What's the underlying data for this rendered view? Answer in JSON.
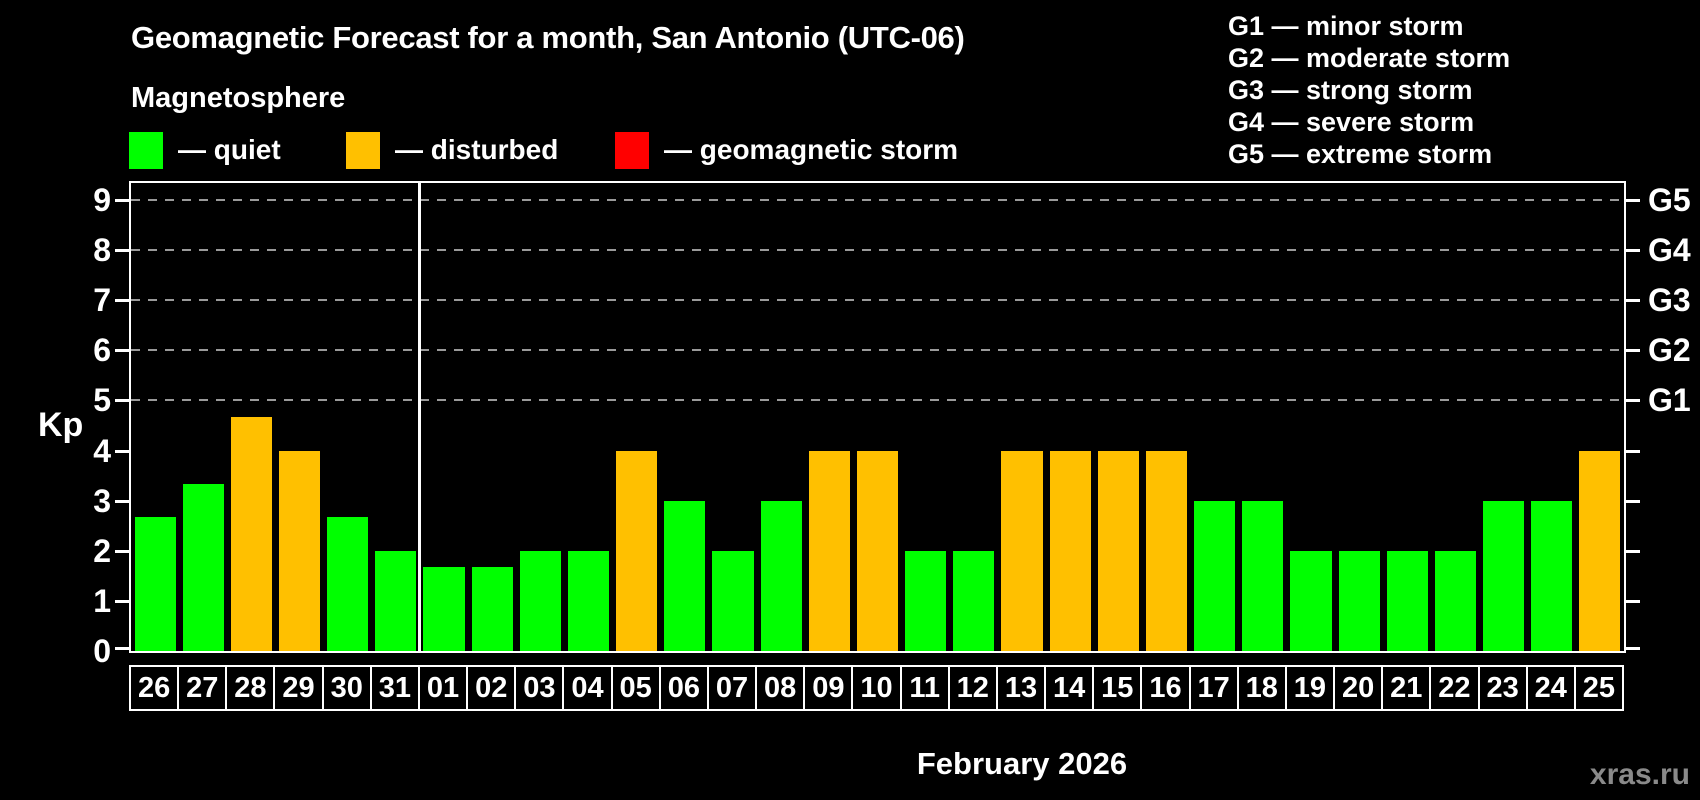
{
  "header": {
    "title": "Geomagnetic Forecast for a month, San Antonio (UTC-06)",
    "subtitle": "Magnetosphere"
  },
  "bar_legend": [
    {
      "key": "quiet",
      "label": "— quiet",
      "color": "#00ff00"
    },
    {
      "key": "disturbed",
      "label": "— disturbed",
      "color": "#ffc000"
    },
    {
      "key": "storm",
      "label": "— geomagnetic storm",
      "color": "#ff0000"
    }
  ],
  "g_legend": [
    "G1 — minor storm",
    "G2 — moderate storm",
    "G3 — strong storm",
    "G4 — severe storm",
    "G5 — extreme storm"
  ],
  "chart_data": {
    "type": "bar",
    "ylabel": "Kp",
    "ylim": [
      0,
      9.34
    ],
    "yticks": [
      0,
      1,
      2,
      3,
      4,
      5,
      6,
      7,
      8,
      9
    ],
    "gridlines_at": [
      5,
      6,
      7,
      8,
      9
    ],
    "gridline_color": "#9a9a9a",
    "right_axis_labels": [
      {
        "kp": 5,
        "label": "G1"
      },
      {
        "kp": 6,
        "label": "G2"
      },
      {
        "kp": 7,
        "label": "G3"
      },
      {
        "kp": 8,
        "label": "G4"
      },
      {
        "kp": 9,
        "label": "G5"
      }
    ],
    "status_colors": {
      "quiet": "#00ff00",
      "disturbed": "#ffc000",
      "storm": "#ff0000"
    },
    "month_separator_after_index": 5,
    "days": [
      {
        "day": "26",
        "kp": 2.67,
        "status": "quiet"
      },
      {
        "day": "27",
        "kp": 3.33,
        "status": "quiet"
      },
      {
        "day": "28",
        "kp": 4.67,
        "status": "disturbed"
      },
      {
        "day": "29",
        "kp": 4.0,
        "status": "disturbed"
      },
      {
        "day": "30",
        "kp": 2.67,
        "status": "quiet"
      },
      {
        "day": "31",
        "kp": 2.0,
        "status": "quiet"
      },
      {
        "day": "01",
        "kp": 1.67,
        "status": "quiet"
      },
      {
        "day": "02",
        "kp": 1.67,
        "status": "quiet"
      },
      {
        "day": "03",
        "kp": 2.0,
        "status": "quiet"
      },
      {
        "day": "04",
        "kp": 2.0,
        "status": "quiet"
      },
      {
        "day": "05",
        "kp": 4.0,
        "status": "disturbed"
      },
      {
        "day": "06",
        "kp": 3.0,
        "status": "quiet"
      },
      {
        "day": "07",
        "kp": 2.0,
        "status": "quiet"
      },
      {
        "day": "08",
        "kp": 3.0,
        "status": "quiet"
      },
      {
        "day": "09",
        "kp": 4.0,
        "status": "disturbed"
      },
      {
        "day": "10",
        "kp": 4.0,
        "status": "disturbed"
      },
      {
        "day": "11",
        "kp": 2.0,
        "status": "quiet"
      },
      {
        "day": "12",
        "kp": 2.0,
        "status": "quiet"
      },
      {
        "day": "13",
        "kp": 4.0,
        "status": "disturbed"
      },
      {
        "day": "14",
        "kp": 4.0,
        "status": "disturbed"
      },
      {
        "day": "15",
        "kp": 4.0,
        "status": "disturbed"
      },
      {
        "day": "16",
        "kp": 4.0,
        "status": "disturbed"
      },
      {
        "day": "17",
        "kp": 3.0,
        "status": "quiet"
      },
      {
        "day": "18",
        "kp": 3.0,
        "status": "quiet"
      },
      {
        "day": "19",
        "kp": 2.0,
        "status": "quiet"
      },
      {
        "day": "20",
        "kp": 2.0,
        "status": "quiet"
      },
      {
        "day": "21",
        "kp": 2.0,
        "status": "quiet"
      },
      {
        "day": "22",
        "kp": 2.0,
        "status": "quiet"
      },
      {
        "day": "23",
        "kp": 3.0,
        "status": "quiet"
      },
      {
        "day": "24",
        "kp": 3.0,
        "status": "quiet"
      },
      {
        "day": "25",
        "kp": 4.0,
        "status": "disturbed"
      }
    ]
  },
  "footer": {
    "month_label": "February 2026",
    "watermark": "xras.ru"
  }
}
